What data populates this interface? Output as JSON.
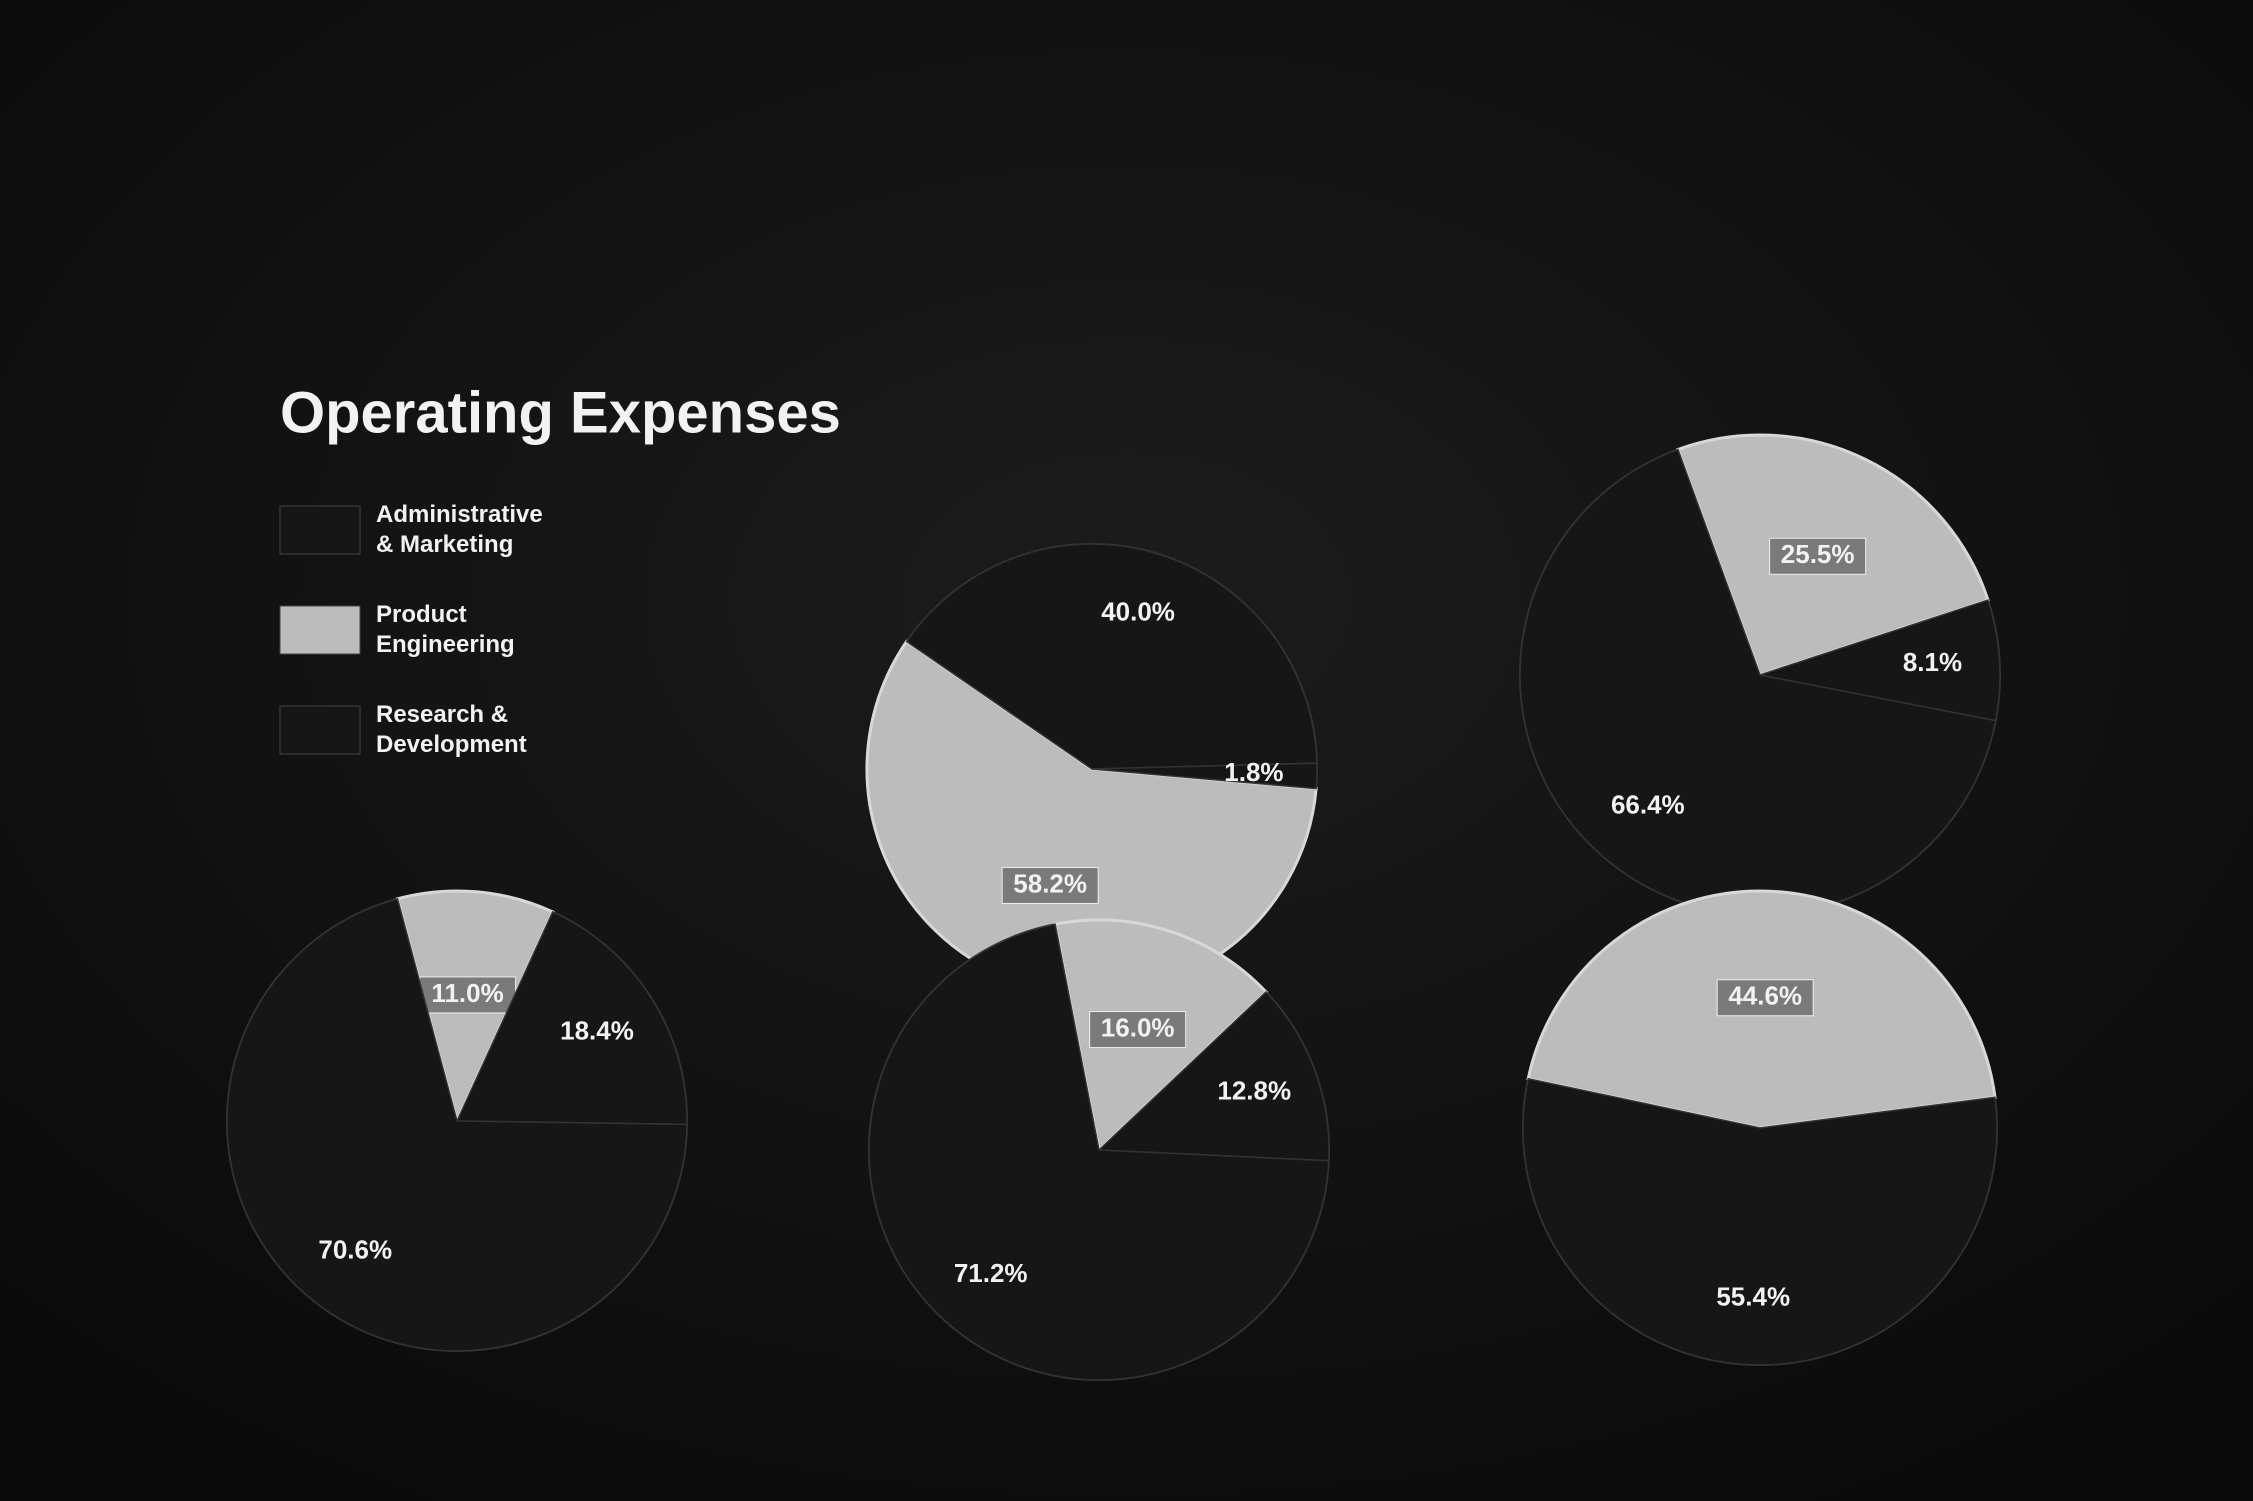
{
  "chart_data": {
    "type": "pie",
    "title": "Operating Expenses",
    "categories": [
      "Administrative & Marketing",
      "Product Engineering",
      "Research & Development"
    ],
    "colors": [
      "#161616",
      "#bcbcbc",
      "#161616"
    ],
    "pies": [
      {
        "values": [
          70.6,
          11.0,
          18.4
        ],
        "value_labels": [
          "70.6%",
          "11.0%",
          "18.4%"
        ]
      },
      {
        "values": [
          1.8,
          58.2,
          40.0
        ],
        "value_labels": [
          "1.8%",
          "58.2%",
          "40.0%"
        ]
      },
      {
        "values": [
          71.2,
          16.0,
          12.8
        ],
        "value_labels": [
          "71.2%",
          "16.0%",
          "12.8%"
        ]
      },
      {
        "values": [
          66.4,
          25.5,
          8.1
        ],
        "value_labels": [
          "66.4%",
          "25.5%",
          "8.1%"
        ]
      },
      {
        "values": [
          55.4,
          44.6,
          null
        ],
        "value_labels": [
          "55.4%",
          "44.6%",
          null
        ]
      }
    ]
  }
}
